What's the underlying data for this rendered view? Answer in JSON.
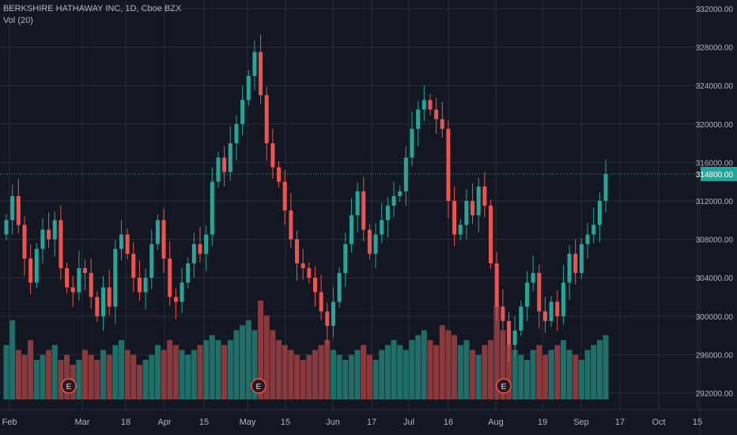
{
  "legend": {
    "title": "BERKSHIRE HATHAWAY INC, 1D, Cboe BZX",
    "volume": "Vol (20)"
  },
  "colors": {
    "background": "#131722",
    "grid": "#2a2e39",
    "up": "#26a69a",
    "down": "#ef5350",
    "up_volume": "#1f6f68",
    "down_volume": "#8a3a3d",
    "last_price_line": "#26a69a",
    "last_price_label_bg": "#26a69a",
    "axis_text": "#b2b5be",
    "event_marker": "#e0e3eb"
  },
  "chart_data": {
    "type": "candlestick",
    "price_axis": {
      "ylim": [
        290000,
        332000
      ],
      "tick_labels": [
        "332000.00",
        "328000.00",
        "324000.00",
        "320000.00",
        "316000.00",
        "312000.00",
        "308000.00",
        "304000.00",
        "300000.00",
        "296000.00",
        "292000.00"
      ],
      "tick_values": [
        332000,
        328000,
        324000,
        320000,
        316000,
        312000,
        308000,
        304000,
        300000,
        296000,
        292000
      ]
    },
    "time_axis": {
      "tick_labels": [
        "Feb",
        "Mar",
        "18",
        "Apr",
        "15",
        "May",
        "15",
        "Jun",
        "17",
        "Jul",
        "16",
        "Aug",
        "19",
        "Sep",
        "17",
        "Oct",
        "15"
      ]
    },
    "last_price": {
      "value": 314800,
      "label": "314800.00"
    },
    "events": [
      {
        "label": "E",
        "date": "Feb 23"
      },
      {
        "label": "E",
        "date": "May 4"
      },
      {
        "label": "E",
        "date": "Aug 3"
      }
    ],
    "ohlc_closes": [
      310000,
      312500,
      309500,
      306000,
      303500,
      307000,
      309000,
      308000,
      310000,
      305000,
      303000,
      302500,
      305000,
      304500,
      302000,
      300000,
      303000,
      301000,
      307000,
      308500,
      306500,
      304000,
      302500,
      304000,
      307500,
      310000,
      306000,
      302000,
      301500,
      303500,
      305500,
      307500,
      306500,
      308500,
      314000,
      316500,
      315000,
      318000,
      320000,
      322500,
      325000,
      327500,
      323000,
      318000,
      315500,
      314000,
      311000,
      308000,
      305500,
      305000,
      304000,
      302500,
      300500,
      299000,
      301500,
      304500,
      307500,
      310500,
      313000,
      309000,
      306500,
      308500,
      310000,
      311500,
      312500,
      313000,
      316500,
      319500,
      321500,
      322500,
      321500,
      320500,
      319500,
      312000,
      308500,
      309500,
      312000,
      310500,
      313500,
      311500,
      305500,
      301000,
      299500,
      297000,
      298500,
      301000,
      303500,
      304500,
      300500,
      299500,
      301500,
      300000,
      303500,
      306500,
      304500,
      307500,
      308500,
      309500,
      312000,
      314800
    ],
    "volume_relative": [
      0.55,
      0.8,
      0.5,
      0.45,
      0.6,
      0.4,
      0.45,
      0.5,
      0.55,
      0.4,
      0.45,
      0.35,
      0.4,
      0.5,
      0.45,
      0.4,
      0.5,
      0.45,
      0.55,
      0.6,
      0.5,
      0.45,
      0.35,
      0.4,
      0.45,
      0.55,
      0.5,
      0.6,
      0.55,
      0.5,
      0.45,
      0.5,
      0.55,
      0.6,
      0.65,
      0.6,
      0.55,
      0.6,
      0.7,
      0.75,
      0.8,
      0.7,
      1.0,
      0.85,
      0.7,
      0.6,
      0.55,
      0.5,
      0.45,
      0.4,
      0.45,
      0.5,
      0.55,
      0.6,
      0.5,
      0.45,
      0.4,
      0.45,
      0.5,
      0.55,
      0.45,
      0.4,
      0.5,
      0.55,
      0.6,
      0.55,
      0.5,
      0.6,
      0.65,
      0.7,
      0.6,
      0.55,
      0.75,
      0.7,
      0.65,
      0.55,
      0.6,
      0.5,
      0.45,
      0.55,
      0.6,
      0.95,
      0.7,
      0.55,
      0.5,
      0.45,
      0.4,
      0.5,
      0.55,
      0.45,
      0.5,
      0.55,
      0.6,
      0.5,
      0.45,
      0.4,
      0.5,
      0.55,
      0.6,
      0.65
    ]
  }
}
